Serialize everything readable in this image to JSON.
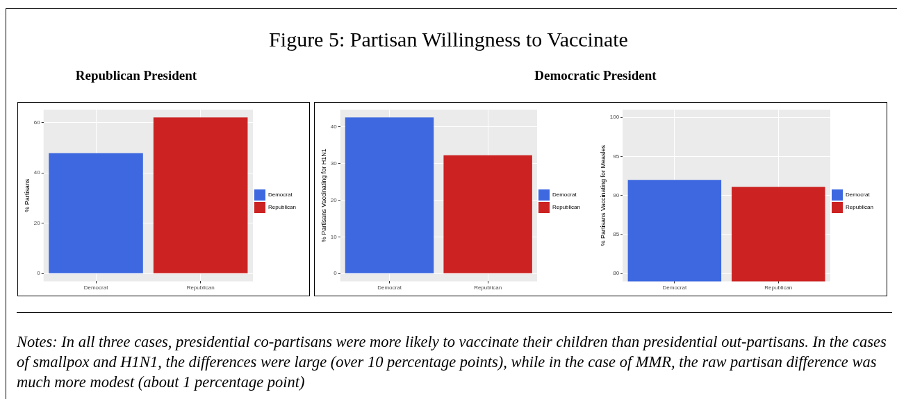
{
  "chart_data": [
    {
      "type": "bar",
      "annotations": [
        "Figure 5: Partisan Willingness to Vaccinate"
      ],
      "subtitle": "Republican President",
      "ylabel": "% Partisans",
      "categories": [
        "Democrat",
        "Republican"
      ],
      "series": [
        {
          "name": "Democrat",
          "color": "#3d68e0",
          "values": [
            47.8,
            null
          ]
        },
        {
          "name": "Republican",
          "color": "#cc2222",
          "values": [
            null,
            62.0
          ]
        }
      ],
      "ylim": [
        -3.1,
        65.1
      ],
      "yticks": [
        0,
        20,
        40,
        60
      ],
      "grid": true,
      "legend": "right"
    },
    {
      "type": "bar",
      "subtitle": "Democratic President",
      "ylabel": "% Partisans Vaccinating for H1N1",
      "categories": [
        "Democrat",
        "Republican"
      ],
      "series": [
        {
          "name": "Democrat",
          "color": "#3d68e0",
          "values": [
            42.5,
            null
          ]
        },
        {
          "name": "Republican",
          "color": "#cc2222",
          "values": [
            null,
            32.2
          ]
        }
      ],
      "ylim": [
        -2.1,
        44.6
      ],
      "yticks": [
        0,
        10,
        20,
        30,
        40
      ],
      "grid": true,
      "legend": "right"
    },
    {
      "type": "bar",
      "ylabel": "% Partisans Vaccinating for Measles",
      "categories": [
        "Democrat",
        "Republican"
      ],
      "series": [
        {
          "name": "Democrat",
          "color": "#3d68e0",
          "values": [
            92.0,
            null
          ]
        },
        {
          "name": "Republican",
          "color": "#cc2222",
          "values": [
            null,
            91.1
          ]
        }
      ],
      "ylim": [
        79,
        101
      ],
      "yticks": [
        80,
        85,
        90,
        95,
        100
      ],
      "grid": true,
      "legend": "right",
      "annotations": [
        "Notes: In all three cases, presidential co-partisans were more likely to vaccinate their children than presidential out-partisans. In the cases of smallpox and H1N1, the differences were large (over 10 percentage points), while in the case of MMR, the raw partisan difference was much more modest (about 1 percentage point)"
      ]
    }
  ]
}
